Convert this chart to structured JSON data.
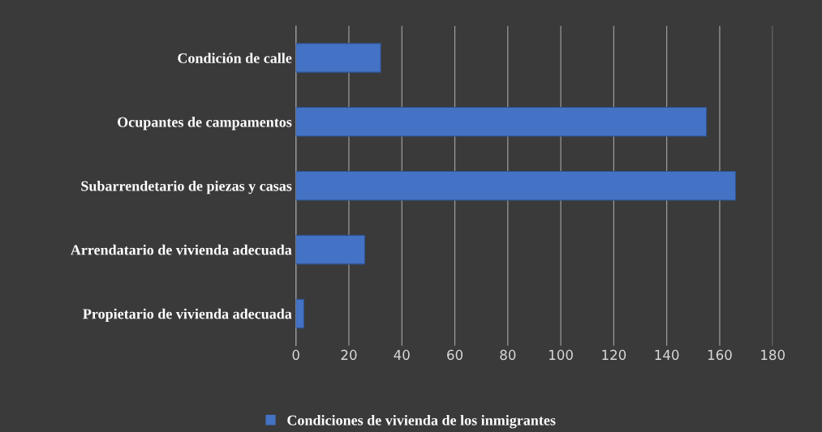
{
  "chart_data": {
    "type": "bar",
    "orientation": "horizontal",
    "categories": [
      "Condición de calle",
      "Ocupantes de campamentos",
      "Subarrendetario de piezas y casas",
      "Arrendatario de vivienda adecuada",
      "Propietario de vivienda adecuada"
    ],
    "series": [
      {
        "name": "Condiciones de vivienda de los inmigrantes",
        "color": "#4472c4",
        "values": [
          32,
          155,
          166,
          26,
          3
        ]
      }
    ],
    "xlim": [
      0,
      180
    ],
    "xticks": [
      0,
      20,
      40,
      60,
      80,
      100,
      120,
      140,
      160,
      180
    ],
    "grid": "x",
    "legend": "bottom"
  }
}
